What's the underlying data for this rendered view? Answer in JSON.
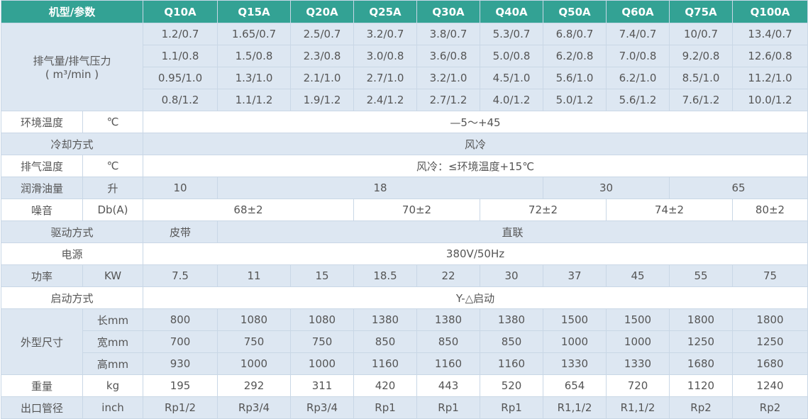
{
  "header": {
    "label": "机型/参数",
    "models": [
      "Q10A",
      "Q15A",
      "Q20A",
      "Q25A",
      "Q30A",
      "Q40A",
      "Q50A",
      "Q60A",
      "Q75A",
      "Q100A"
    ]
  },
  "displacement": {
    "label": "排气量/排气压力",
    "unit": "( m³/min )",
    "rows": [
      [
        "1.2/0.7",
        "1.65/0.7",
        "2.5/0.7",
        "3.2/0.7",
        "3.8/0.7",
        "5.3/0.7",
        "6.8/0.7",
        "7.4/0.7",
        "10/0.7",
        "13.4/0.7"
      ],
      [
        "1.1/0.8",
        "1.5/0.8",
        "2.3/0.8",
        "3.0/0.8",
        "3.6/0.8",
        "5.0/0.8",
        "6.2/0.8",
        "7.0/0.8",
        "9.2/0.8",
        "12.6/0.8"
      ],
      [
        "0.95/1.0",
        "1.3/1.0",
        "2.1/1.0",
        "2.7/1.0",
        "3.2/1.0",
        "4.5/1.0",
        "5.6/1.0",
        "6.2/1.0",
        "8.5/1.0",
        "11.2/1.0"
      ],
      [
        "0.8/1.2",
        "1.1/1.2",
        "1.9/1.2",
        "2.4/1.2",
        "2.7/1.2",
        "4.0/1.2",
        "5.0/1.2",
        "5.6/1.2",
        "7.6/1.2",
        "10.0/1.2"
      ]
    ]
  },
  "ambient": {
    "label": "环境温度",
    "unit": "℃",
    "value": "—5～+45"
  },
  "cooling": {
    "label": "冷却方式",
    "value": "风冷"
  },
  "exhaust_temp": {
    "label": "排气温度",
    "unit": "℃",
    "value": "风冷：≤环境温度+15℃"
  },
  "oil": {
    "label": "润滑油量",
    "unit": "升",
    "values": [
      "10",
      "18",
      "30",
      "65"
    ]
  },
  "noise": {
    "label": "噪音",
    "unit": "Db(A)",
    "values": [
      "68±2",
      "70±2",
      "72±2",
      "74±2",
      "80±2"
    ]
  },
  "drive": {
    "label": "驱动方式",
    "values": [
      "皮带",
      "直联"
    ]
  },
  "supply": {
    "label": "电源",
    "value": "380V/50Hz"
  },
  "power": {
    "label": "功率",
    "unit": "KW",
    "values": [
      "7.5",
      "11",
      "15",
      "18.5",
      "22",
      "30",
      "37",
      "45",
      "55",
      "75"
    ]
  },
  "start": {
    "label": "启动方式",
    "value": "Y-△启动"
  },
  "dimensions": {
    "label": "外型尺寸",
    "rows": [
      {
        "unit": "长mm",
        "values": [
          "800",
          "1080",
          "1080",
          "1380",
          "1380",
          "1380",
          "1500",
          "1500",
          "1800",
          "1800"
        ]
      },
      {
        "unit": "宽mm",
        "values": [
          "700",
          "750",
          "750",
          "850",
          "850",
          "850",
          "1000",
          "1000",
          "1250",
          "1250"
        ]
      },
      {
        "unit": "高mm",
        "values": [
          "930",
          "1000",
          "1000",
          "1160",
          "1160",
          "1160",
          "1330",
          "1330",
          "1680",
          "1680"
        ]
      }
    ]
  },
  "weight": {
    "label": "重量",
    "unit": "kg",
    "values": [
      "195",
      "292",
      "311",
      "420",
      "443",
      "520",
      "654",
      "720",
      "1120",
      "1240"
    ]
  },
  "outlet": {
    "label": "出口管径",
    "unit": "inch",
    "values": [
      "Rp1/2",
      "Rp3/4",
      "Rp3/4",
      "Rp1",
      "Rp1",
      "Rp1",
      "R1,1/2",
      "R1,1/2",
      "Rp2",
      "Rp2"
    ]
  }
}
